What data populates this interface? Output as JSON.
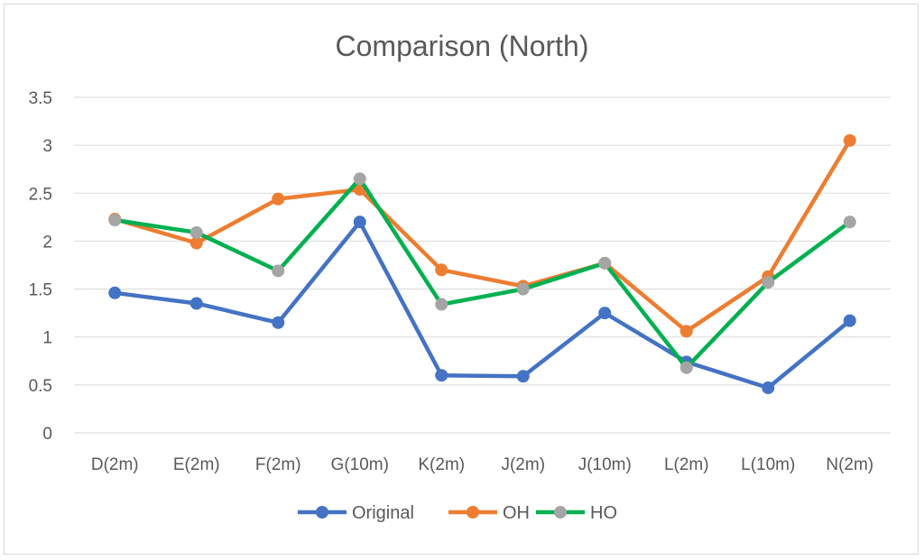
{
  "chart_data": {
    "type": "line",
    "title": "Comparison (North)",
    "xlabel": "",
    "ylabel": "",
    "categories": [
      "D(2m)",
      "E(2m)",
      "F(2m)",
      "G(10m)",
      "K(2m)",
      "J(2m)",
      "J(10m)",
      "L(2m)",
      "L(10m)",
      "N(2m)"
    ],
    "ylim": [
      0,
      3.5
    ],
    "yticks": [
      "0",
      "0.5",
      "1",
      "1.5",
      "2",
      "2.5",
      "3",
      "3.5"
    ],
    "grid": true,
    "legend_position": "bottom",
    "series": [
      {
        "name": "Original",
        "line_color": "#4472C4",
        "marker_color": "#4472C4",
        "values": [
          1.46,
          1.35,
          1.15,
          2.2,
          0.6,
          0.59,
          1.25,
          0.74,
          0.47,
          1.17
        ]
      },
      {
        "name": "OH",
        "line_color": "#ED7D31",
        "marker_color": "#ED7D31",
        "values": [
          2.23,
          1.98,
          2.44,
          2.54,
          1.7,
          1.53,
          1.77,
          1.06,
          1.63,
          3.05
        ]
      },
      {
        "name": "HO",
        "line_color": "#00B050",
        "marker_color": "#A5A5A5",
        "values": [
          2.22,
          2.09,
          1.69,
          2.65,
          1.34,
          1.5,
          1.77,
          0.68,
          1.57,
          2.2
        ]
      }
    ]
  }
}
